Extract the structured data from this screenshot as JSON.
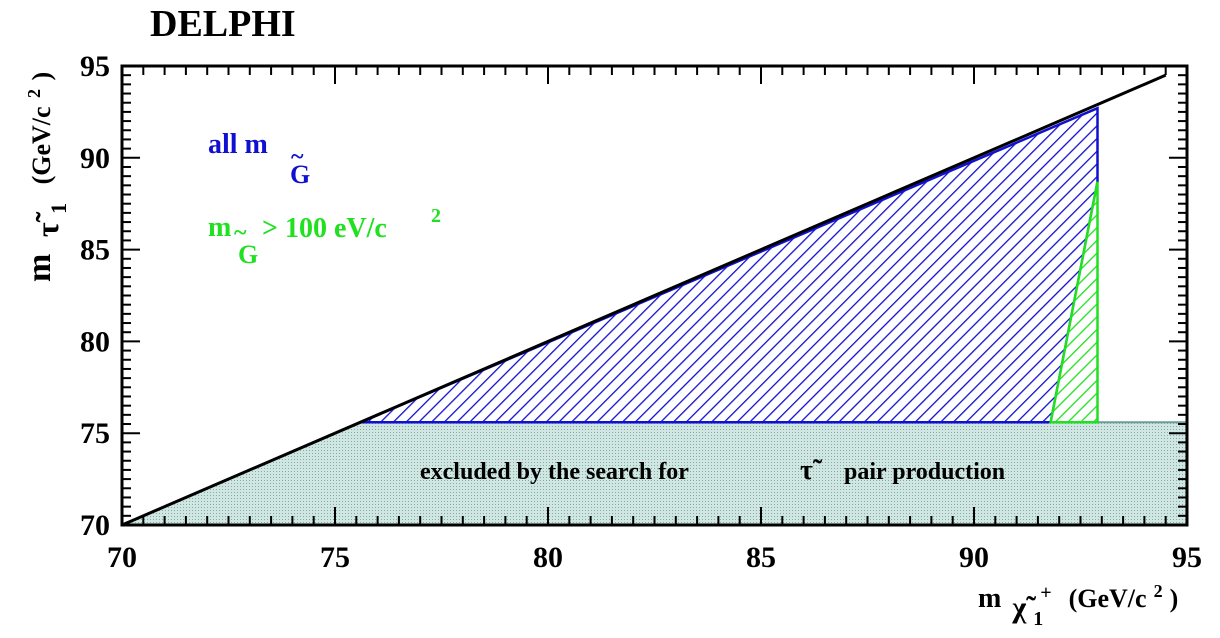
{
  "chart_data": {
    "type": "area",
    "title": "DELPHI",
    "xlabel": {
      "main": "m",
      "sub": "χ̃",
      "sub_index": "1",
      "sup": "+",
      "unit": "(GeV/c",
      "unit_power": "2",
      "unit_close": ")"
    },
    "ylabel": {
      "main": "m",
      "sub": "τ̃",
      "sub_index": "1",
      "unit": "(GeV/c",
      "unit_power": "2",
      "unit_close": ")"
    },
    "xlim": [
      70,
      95
    ],
    "ylim": [
      70,
      95
    ],
    "xticks": [
      "70",
      "75",
      "80",
      "85",
      "90",
      "95"
    ],
    "yticks": [
      "70",
      "75",
      "80",
      "85",
      "90",
      "95"
    ],
    "kinematic_line": [
      [
        70,
        70
      ],
      [
        94.5,
        94.5
      ]
    ],
    "regions": [
      {
        "label": {
          "main": "all m",
          "tilde": "~",
          "sub": "G"
        },
        "color": "#1010d0",
        "polygon": [
          [
            75.6,
            75.6
          ],
          [
            92.9,
            92.7
          ],
          [
            92.9,
            88.7
          ],
          [
            91.8,
            75.6
          ]
        ]
      },
      {
        "label": {
          "main": "m",
          "tilde": "~",
          "sub": "G",
          "rest": "> 100 eV/c",
          "power": "2"
        },
        "color": "#20e020",
        "polygon": [
          [
            91.8,
            75.6
          ],
          [
            92.9,
            88.7
          ],
          [
            92.9,
            75.6
          ]
        ]
      },
      {
        "label": {
          "text": "excluded by the search for",
          "symbol": "τ̃",
          "rest": "pair production"
        },
        "color": "#b8d8d2",
        "polygon": [
          [
            70,
            70
          ],
          [
            75.6,
            75.6
          ],
          [
            95,
            75.6
          ],
          [
            95,
            70
          ]
        ]
      }
    ]
  }
}
